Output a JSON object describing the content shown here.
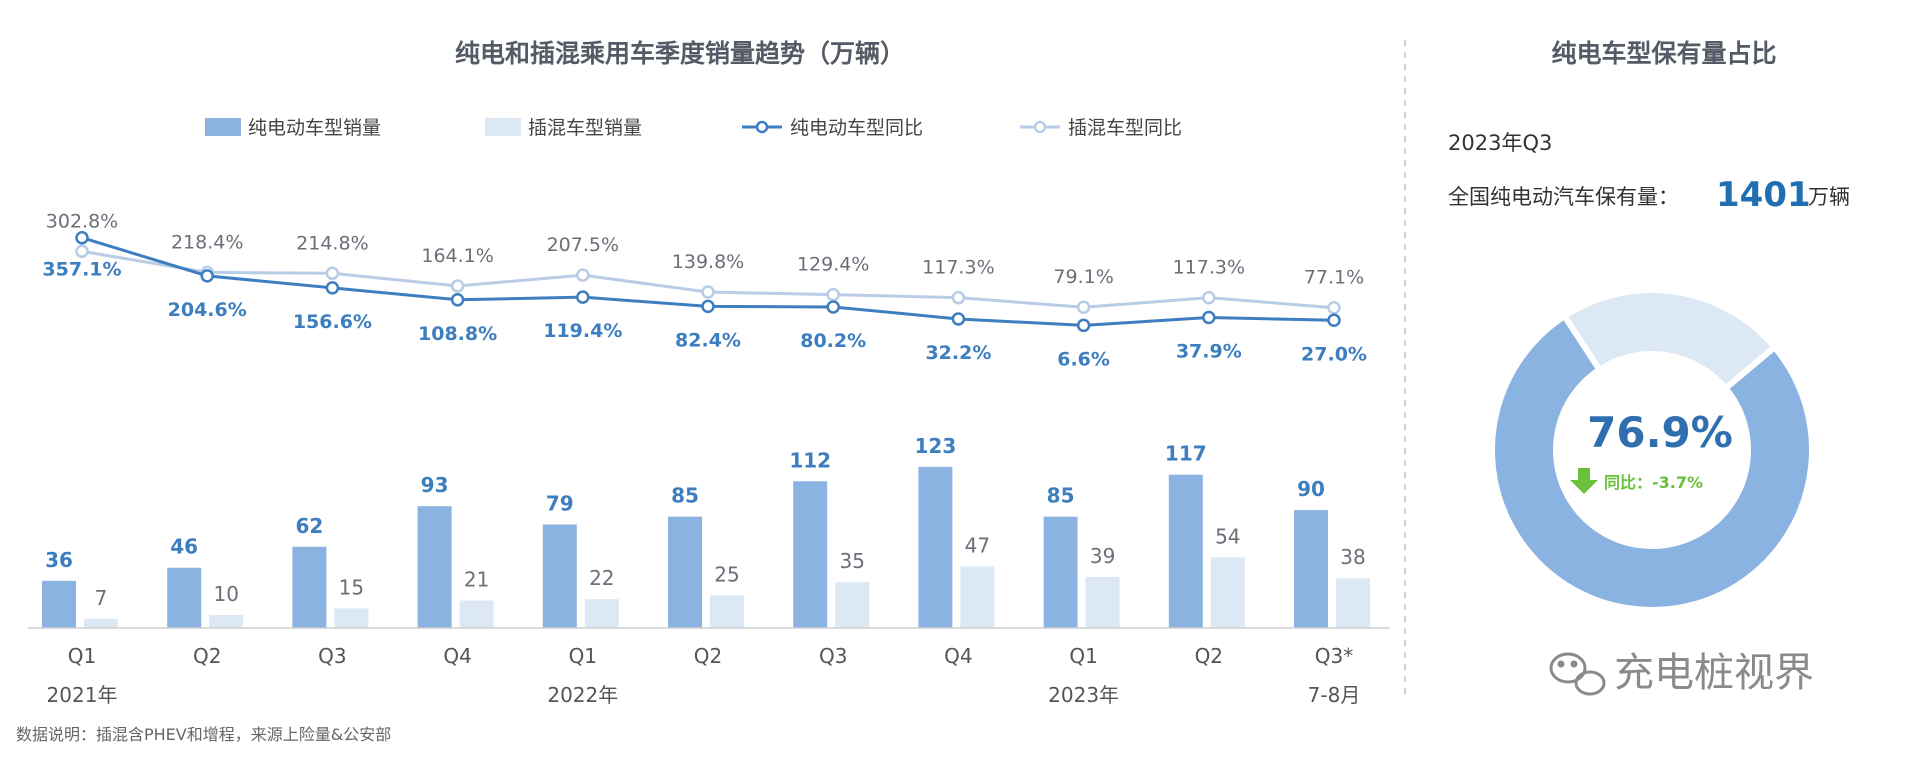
{
  "left_title": "纯电和插混乘用车季度销量趋势（万辆）",
  "legend": {
    "bev_sales": "纯电动车型销量",
    "phev_sales": "插混车型销量",
    "bev_yoy": "纯电动车型同比",
    "phev_yoy": "插混车型同比"
  },
  "colors": {
    "bev_bar": "#8bb3e2",
    "phev_bar": "#dde8f5",
    "bev_line": "#3c7ebf",
    "phev_line": "#b9cce6",
    "green": "#6abf3b"
  },
  "chart_data": {
    "type": "bar",
    "title": "纯电和插混乘用车季度销量趋势（万辆）",
    "categories": [
      "Q1",
      "Q2",
      "Q3",
      "Q4",
      "Q1",
      "Q2",
      "Q3",
      "Q4",
      "Q1",
      "Q2",
      "Q3*"
    ],
    "year_labels": [
      "2021年",
      "2022年",
      "2023年",
      "7-8月"
    ],
    "series": [
      {
        "name": "纯电动车型销量",
        "kind": "bar",
        "values": [
          36,
          46,
          62,
          93,
          79,
          85,
          112,
          123,
          85,
          117,
          90
        ]
      },
      {
        "name": "插混车型销量",
        "kind": "bar",
        "values": [
          7,
          10,
          15,
          21,
          22,
          25,
          35,
          47,
          39,
          54,
          38
        ]
      },
      {
        "name": "纯电动车型同比",
        "kind": "line",
        "values": [
          357.1,
          204.6,
          156.6,
          108.8,
          119.4,
          82.4,
          80.2,
          32.2,
          6.6,
          37.9,
          27.0
        ],
        "labels": [
          "357.1%",
          "204.6%",
          "156.6%",
          "108.8%",
          "119.4%",
          "82.4%",
          "80.2%",
          "32.2%",
          "6.6%",
          "37.9%",
          "27.0%"
        ]
      },
      {
        "name": "插混车型同比",
        "kind": "line",
        "values": [
          302.8,
          218.4,
          214.8,
          164.1,
          207.5,
          139.8,
          129.4,
          117.3,
          79.1,
          117.3,
          77.1
        ],
        "labels": [
          "302.8%",
          "218.4%",
          "214.8%",
          "164.1%",
          "207.5%",
          "139.8%",
          "129.4%",
          "117.3%",
          "79.1%",
          "117.3%",
          "77.1%"
        ]
      }
    ],
    "legend_position": "top"
  },
  "note": "数据说明：插混含PHEV和增程，来源上险量&公安部",
  "right_panel": {
    "title": "纯电车型保有量占比",
    "period": "2023年Q3",
    "stock_label": "全国纯电动汽车保有量：",
    "stock_value": "1401",
    "stock_unit": "万辆",
    "donut": {
      "type": "pie",
      "share": 76.9,
      "share_label": "76.9%",
      "yoy_label": "同比：-3.7%",
      "colors": [
        "#8bb3e2",
        "#dde8f5"
      ]
    }
  },
  "watermark_brand": "充电桩视界"
}
